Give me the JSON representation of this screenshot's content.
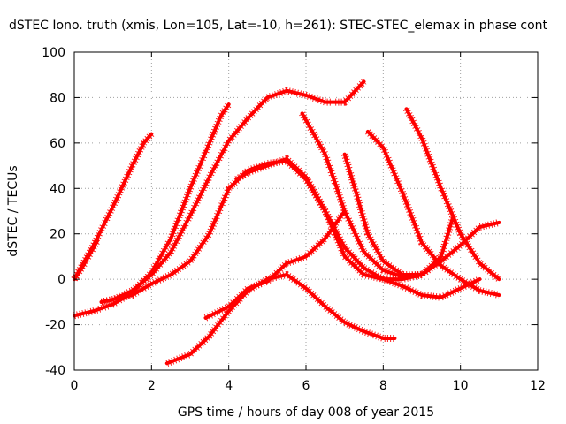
{
  "chart_data": {
    "type": "line",
    "title": "dSTEC Iono. truth (xmis, Lon=105, Lat=-10, h=261): STEC-STEC_elemax in phase cont",
    "xlabel": "GPS time / hours of day 008 of year 2015",
    "ylabel": "dSTEC  / TECUs",
    "xlim": [
      0,
      12
    ],
    "ylim": [
      -40,
      100
    ],
    "xticks": [
      0,
      2,
      4,
      6,
      8,
      10,
      12
    ],
    "yticks": [
      -40,
      -20,
      0,
      20,
      40,
      60,
      80,
      100
    ],
    "grid": true,
    "legend": "none",
    "color": "#ff0000",
    "series": [
      {
        "x": [
          0,
          0.2,
          0.4,
          0.6
        ],
        "y": [
          0,
          5,
          11,
          17
        ]
      },
      {
        "x": [
          0,
          0.5,
          1.0,
          1.5,
          1.8,
          2.0
        ],
        "y": [
          0,
          15,
          32,
          50,
          60,
          64
        ]
      },
      {
        "x": [
          0,
          0.5,
          1.0,
          1.5,
          2.0,
          2.5,
          3.0,
          3.5,
          3.8,
          4.0
        ],
        "y": [
          -16,
          -14,
          -11,
          -6,
          3,
          18,
          40,
          60,
          72,
          77
        ]
      },
      {
        "x": [
          0.7,
          1.0,
          1.5,
          2.0,
          2.5,
          3.0,
          3.5,
          4.0,
          4.5,
          5.0,
          5.5,
          6.0,
          6.5,
          7.0,
          7.5
        ],
        "y": [
          -10,
          -9,
          -5,
          2,
          12,
          28,
          45,
          61,
          71,
          80,
          83,
          81,
          78,
          78,
          87
        ]
      },
      {
        "x": [
          0.7,
          1.5,
          2.0,
          2.5,
          3.0,
          3.5,
          4.0,
          4.5,
          5.0,
          5.5,
          6.0,
          6.5,
          7.0,
          7.5,
          8.0,
          8.5,
          9.0
        ],
        "y": [
          -10,
          -7,
          -2,
          2,
          8,
          20,
          40,
          48,
          51,
          52,
          44,
          30,
          14,
          5,
          0,
          0,
          2
        ]
      },
      {
        "x": [
          2.4,
          3.0,
          3.5,
          4.0,
          4.5,
          5.0,
          5.5,
          6.0,
          6.5,
          7.0,
          7.5,
          8.0,
          8.3
        ],
        "y": [
          -37,
          -33,
          -25,
          -14,
          -5,
          0,
          2,
          -4,
          -12,
          -19,
          -23,
          -26,
          -26
        ]
      },
      {
        "x": [
          3.4,
          4.0,
          4.5,
          5.0,
          5.5,
          6.0,
          6.5,
          7.0
        ],
        "y": [
          -17,
          -12,
          -4,
          -1,
          7,
          10,
          18,
          30
        ]
      },
      {
        "x": [
          4.2,
          4.5,
          5.0,
          5.5,
          6.0,
          6.5,
          7.0,
          7.5,
          8.0,
          8.5,
          9.0,
          9.5,
          10.0,
          10.5
        ],
        "y": [
          44,
          47,
          50,
          53,
          45,
          30,
          10,
          2,
          0,
          -3,
          -7,
          -8,
          -4,
          0
        ]
      },
      {
        "x": [
          5.9,
          6.5,
          7.0,
          7.5,
          8.0,
          8.5,
          9.0,
          9.5,
          10.0,
          10.5,
          11.0
        ],
        "y": [
          73,
          55,
          30,
          12,
          4,
          1,
          2,
          8,
          15,
          23,
          25
        ]
      },
      {
        "x": [
          7.0,
          7.3,
          7.6,
          8.0,
          8.5,
          9.0,
          9.5,
          9.8
        ],
        "y": [
          55,
          38,
          20,
          8,
          2,
          2,
          10,
          27
        ]
      },
      {
        "x": [
          7.6,
          8.0,
          8.5,
          9.0,
          9.5,
          10.0,
          10.5,
          11.0
        ],
        "y": [
          65,
          58,
          38,
          16,
          6,
          0,
          -5,
          -7
        ]
      },
      {
        "x": [
          8.6,
          9.0,
          9.5,
          10.0,
          10.5,
          11.0
        ],
        "y": [
          75,
          62,
          40,
          20,
          7,
          0
        ]
      }
    ]
  }
}
